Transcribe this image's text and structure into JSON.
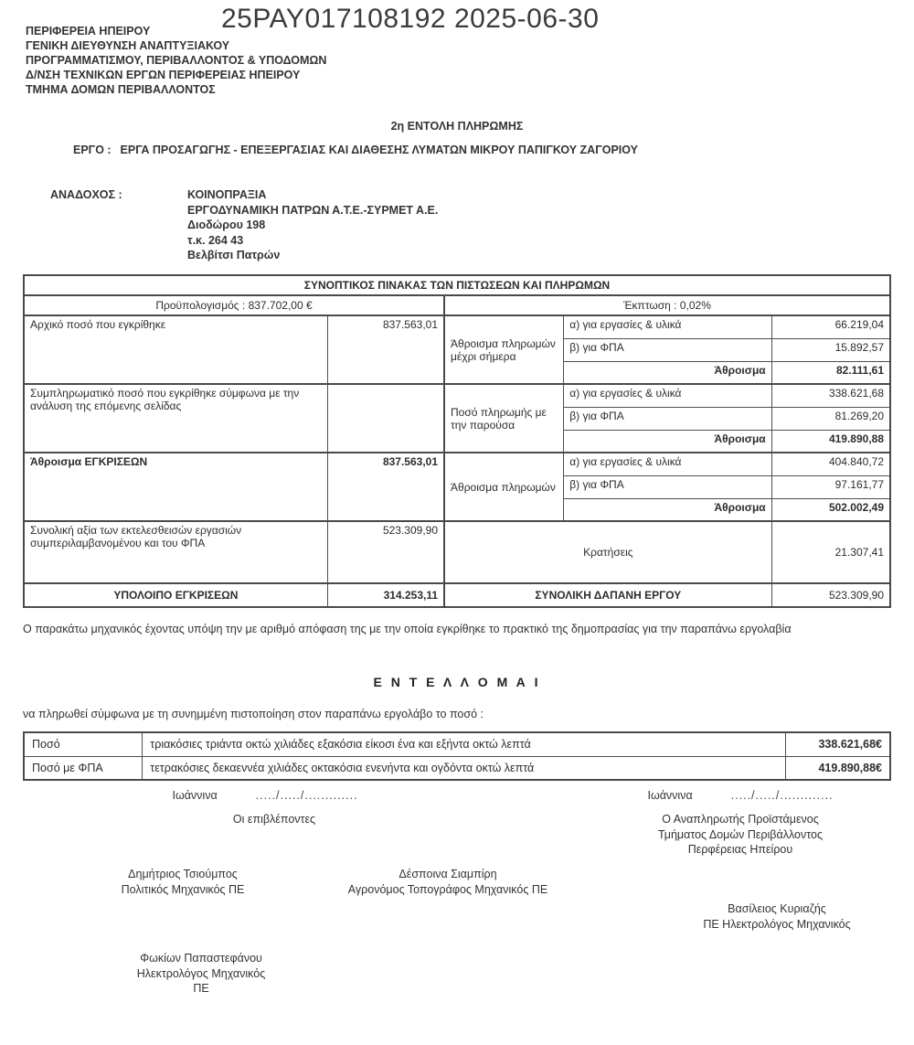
{
  "ada": {
    "number_and_date": "25PAY017108192 2025-06-30"
  },
  "agency": {
    "lines": [
      "ΠΕΡΙΦΕΡΕΙΑ ΗΠΕΙΡΟΥ",
      "ΓΕΝΙΚΗ ΔΙΕΥΘΥΝΣΗ ΑΝΑΠΤΥΞΙΑΚΟΥ",
      "ΠΡΟΓΡΑΜΜΑΤΙΣΜΟΥ, ΠΕΡΙΒΑΛΛΟΝΤΟΣ & ΥΠΟΔΟΜΩΝ",
      "Δ/ΝΣΗ ΤΕΧΝΙΚΩΝ ΕΡΓΩΝ ΠΕΡΙΦΕΡΕΙΑΣ ΗΠΕΙΡΟΥ",
      "ΤΜΗΜΑ ΔΟΜΩΝ ΠΕΡΙΒΑΛΛΟΝΤΟΣ"
    ]
  },
  "order_title": "2η ΕΝΤΟΛΗ ΠΛΗΡΩΜΗΣ",
  "project": {
    "label": "ΕΡΓΟ :",
    "name": "ΕΡΓΑ ΠΡΟΣΑΓΩΓΗΣ - ΕΠΕΞΕΡΓΑΣΙΑΣ ΚΑΙ ΔΙΑΘΕΣΗΣ ΛΥΜΑΤΩΝ ΜΙΚΡΟΥ ΠΑΠΙΓΚΟΥ ΖΑΓΟΡΙΟΥ"
  },
  "contractor": {
    "label": "ΑΝΑΔΟΧΟΣ :",
    "lines": [
      "ΚΟΙΝΟΠΡΑΞΙΑ",
      "ΕΡΓΟΔΥΝΑΜΙΚΗ ΠΑΤΡΩΝ Α.Τ.Ε.-ΣΥΡΜΕΤ Α.Ε.",
      "Διοδώρου 198",
      "τ.κ. 264 43",
      "Βελβίτσι Πατρών"
    ]
  },
  "summary_table": {
    "title": "ΣΥΝΟΠΤΙΚΟΣ ΠΙΝΑΚΑΣ ΤΩΝ ΠΙΣΤΩΣΕΩΝ ΚΑΙ ΠΛΗΡΩΜΩΝ",
    "budget": "Προϋπολογισμός : 837.702,00 €",
    "discount": "Έκπτωση : 0,02%",
    "left_rows": [
      {
        "label": "Αρχικό ποσό που εγκρίθηκε",
        "value": "837.563,01"
      },
      {
        "label": "Συμπληρωματικό ποσό που εγκρίθηκε σύμφωνα με την ανάλυση της επόμενης σελίδας",
        "value": ""
      },
      {
        "label": "Άθροισμα ΕΓΚΡΙΣΕΩΝ",
        "value": "837.563,01"
      },
      {
        "label": "Συνολική αξία των εκτελεσθεισών εργασιών συμπεριλαμβανομένου και του ΦΠΑ",
        "value": "523.309,90"
      }
    ],
    "right_groups": [
      {
        "title": "Άθροισμα πληρωμών μέχρι σήμερα",
        "works_label": "α) για εργασίες & υλικά",
        "works": "66.219,04",
        "vat_label": "β) για ΦΠΑ",
        "vat": "15.892,57",
        "sum_label": "Άθροισμα",
        "sum": "82.111,61"
      },
      {
        "title": "Ποσό πληρωμής με την παρούσα",
        "works_label": "α) για εργασίες & υλικά",
        "works": "338.621,68",
        "vat_label": "β) για ΦΠΑ",
        "vat": "81.269,20",
        "sum_label": "Άθροισμα",
        "sum": "419.890,88"
      },
      {
        "title": "Άθροισμα πληρωμών",
        "works_label": "α) για εργασίες & υλικά",
        "works": "404.840,72",
        "vat_label": "β) για ΦΠΑ",
        "vat": "97.161,77",
        "sum_label": "Άθροισμα",
        "sum": "502.002,49"
      }
    ],
    "deductions": {
      "label": "Κρατήσεις",
      "value": "21.307,41"
    },
    "footer": {
      "left_label": "ΥΠΟΛΟΙΠΟ ΕΓΚΡΙΣΕΩΝ",
      "left_value": "314.253,11",
      "right_label": "ΣΥΝΟΛΙΚΗ ΔΑΠΑΝΗ ΕΡΓΟΥ",
      "right_value": "523.309,90"
    }
  },
  "body_text": {
    "paragraph": "Ο παρακάτω μηχανικός έχοντας υπόψη την με αριθμό  απόφαση της  με την οποία εγκρίθηκε το πρακτικό της δημοπρασίας για την παραπάνω εργολαβία",
    "command": "Ε Ν Τ Ε Λ Λ Ο Μ Α Ι",
    "instruction": "να πληρωθεί σύμφωνα με τη συνημμένη πιστοποίηση στον παραπάνω εργολάβο το ποσό :"
  },
  "amounts_table": {
    "rows": [
      {
        "label": "Ποσό",
        "text": "τριακόσιες τριάντα οκτώ χιλιάδες εξακόσια είκοσι ένα και εξήντα οκτώ λεπτά",
        "amount": "338.621,68€"
      },
      {
        "label": "Ποσό με ΦΠΑ",
        "text": "τετρακόσιες δεκαεννέα χιλιάδες οκτακόσια ενενήντα και ογδόντα οκτώ λεπτά",
        "amount": "419.890,88€"
      }
    ]
  },
  "signatures": {
    "left": {
      "place": "Ιωάννινα",
      "date_dots": "...../...../.............",
      "role": "Οι επιβλέποντες"
    },
    "right": {
      "place": "Ιωάννινα",
      "date_dots": "...../...../.............",
      "role_line1": "Ο Αναπληρωτής Προϊστάμενος",
      "role_line2": "Τμήματος Δομών Περιβάλλοντος",
      "role_line3": "Περφέρειας Ηπείρου"
    },
    "signers": [
      {
        "name": "Δημήτριος Τσιούμπος",
        "title": "Πολιτικός Μηχανικός ΠΕ"
      },
      {
        "name": "Δέσποινα Σιαμπίρη",
        "title": "Αγρονόμος Τοπογράφος Μηχανικός ΠΕ"
      },
      {
        "name": "Βασίλειος Κυριαζής",
        "title": "ΠΕ Ηλεκτρολόγος Μηχανικός"
      },
      {
        "name": "Φωκίων Παπαστεφάνου",
        "title": "Ηλεκτρολόγος Μηχανικός",
        "title2": "ΠΕ"
      }
    ]
  }
}
